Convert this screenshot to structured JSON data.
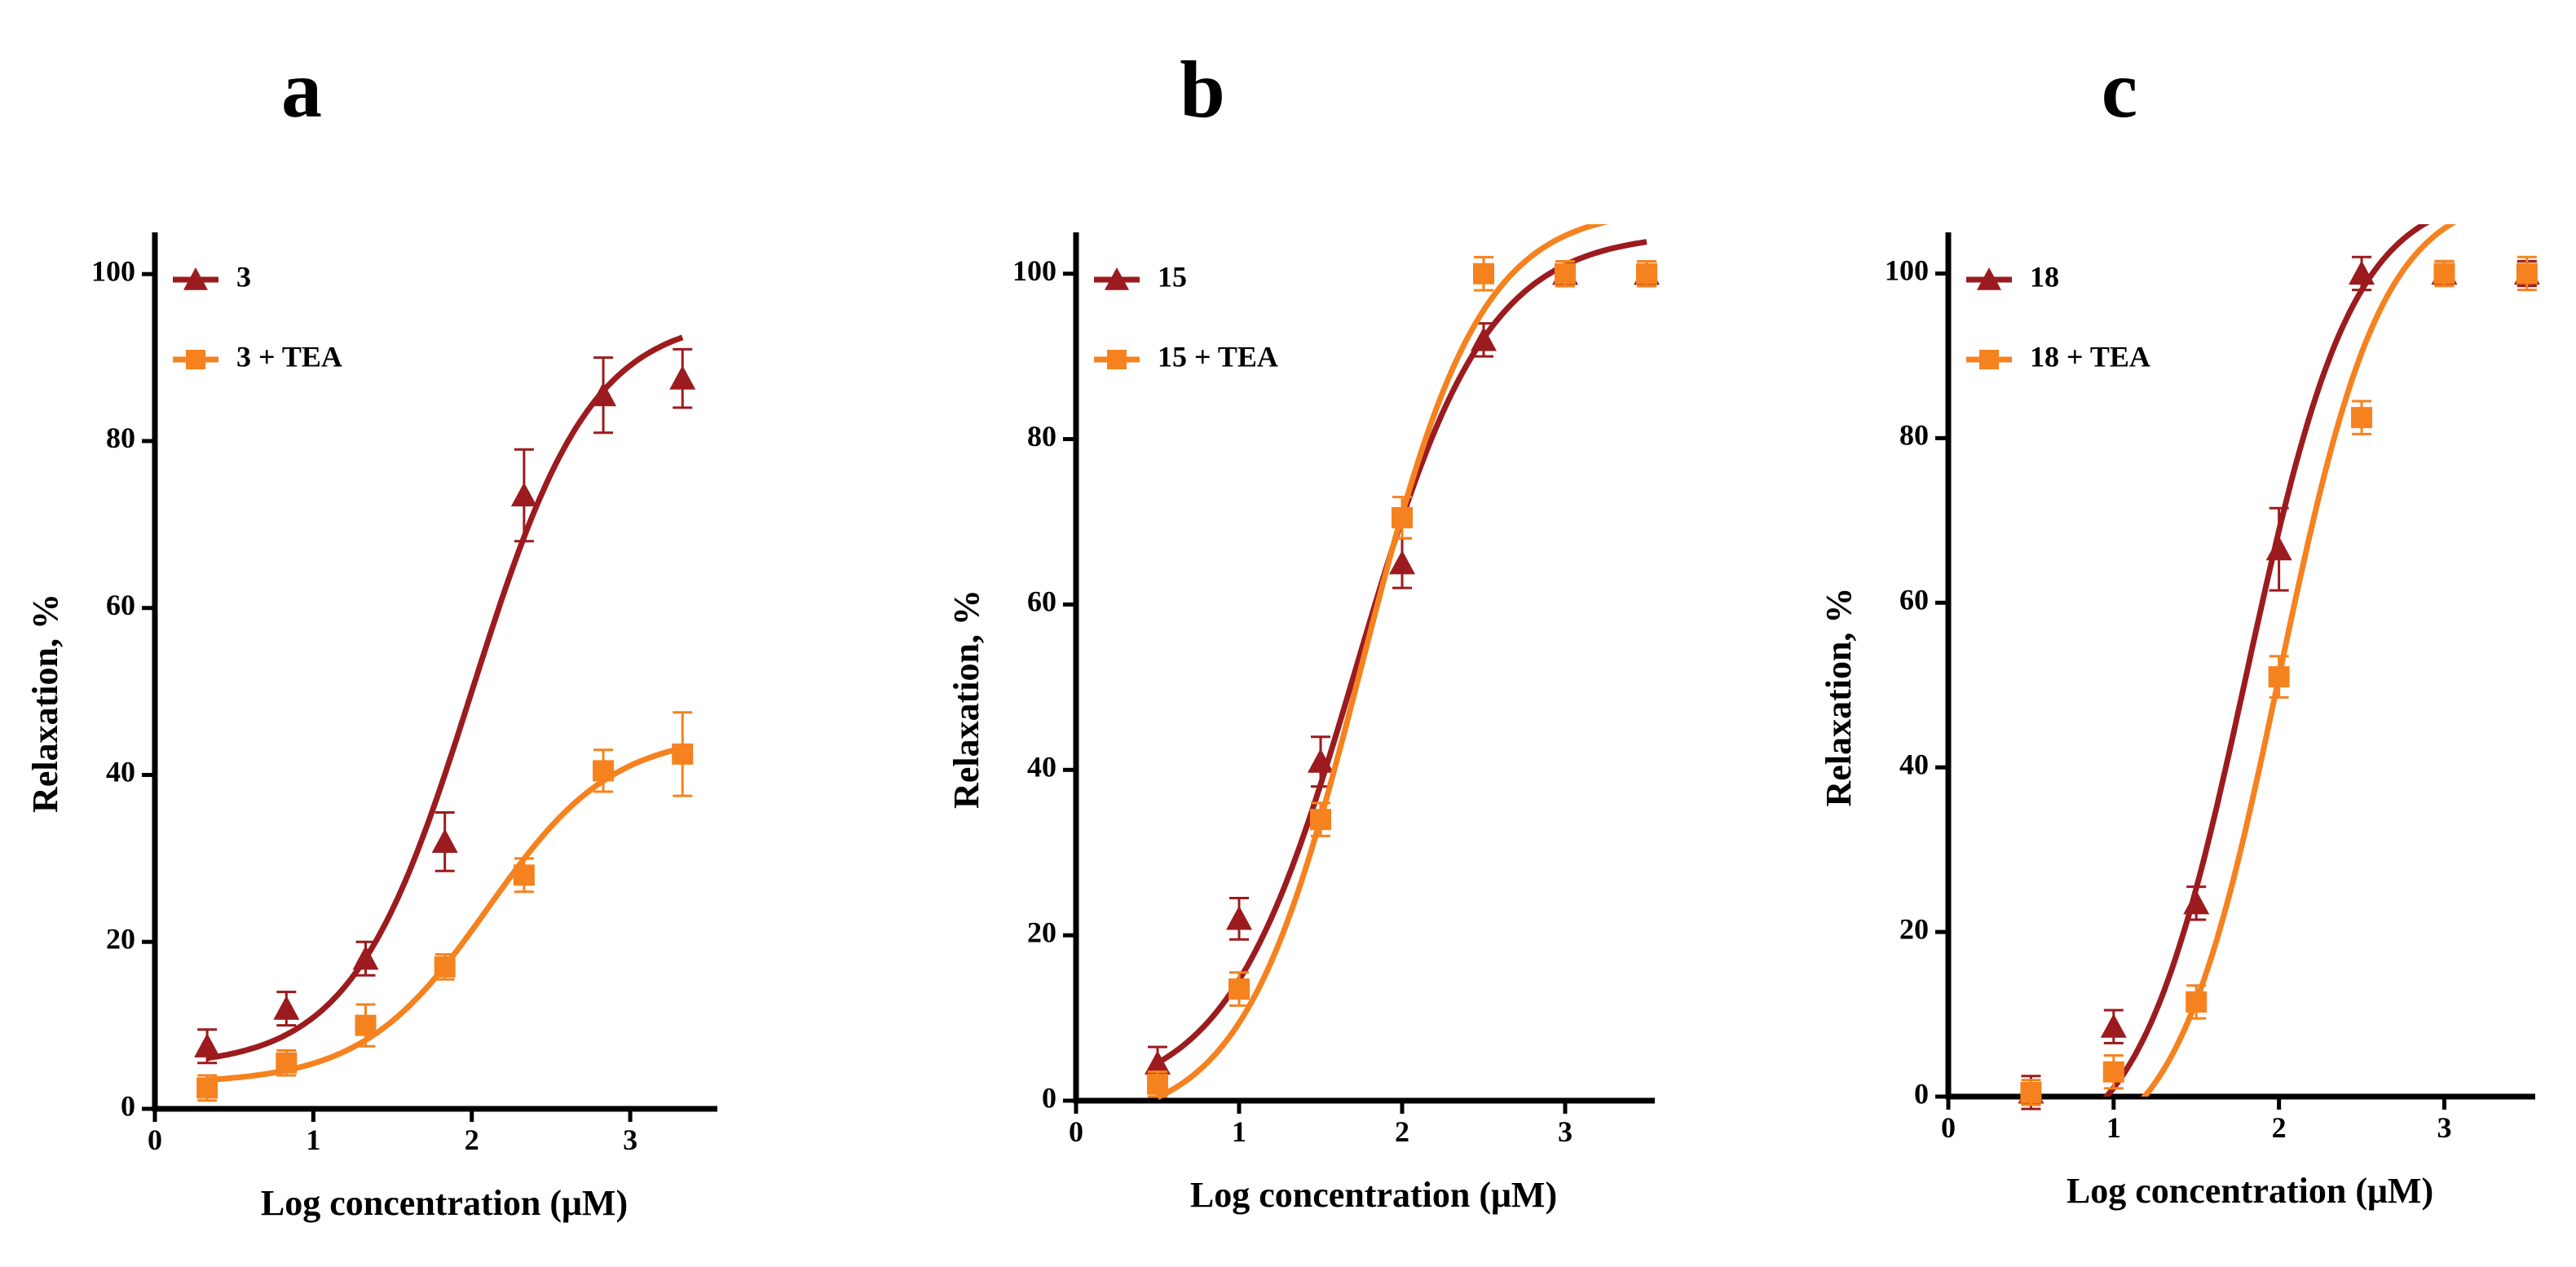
{
  "colors": {
    "series_dark": "#9b1b1e",
    "series_orange": "#f5821f",
    "axis": "#000000"
  },
  "chart_data": [
    {
      "type": "scatter",
      "panel_label": "a",
      "title": "",
      "xlabel": "Log concentration (μM)",
      "ylabel": "Relaxation, %",
      "xlim": [
        0,
        3.55
      ],
      "ylim": [
        0,
        105
      ],
      "x_ticks": [
        0,
        1,
        2,
        3
      ],
      "y_ticks": [
        0,
        20,
        40,
        60,
        80,
        100
      ],
      "grid": false,
      "legend_position": "top-left",
      "series": [
        {
          "name": "3",
          "marker": "triangle",
          "color": "#9b1b1e",
          "x": [
            0.33,
            0.83,
            1.33,
            1.83,
            2.33,
            2.83,
            3.33
          ],
          "y": [
            7.5,
            12,
            18,
            32,
            73.5,
            85.5,
            87.5
          ],
          "error": [
            2,
            2,
            2,
            3.5,
            5.5,
            4.5,
            3.5
          ],
          "fit": {
            "bottom": 5,
            "top": 95,
            "logEC50": 2.0,
            "hill": 1.15
          }
        },
        {
          "name": "3 + TEA",
          "marker": "square",
          "color": "#f5821f",
          "x": [
            0.33,
            0.83,
            1.33,
            1.83,
            2.33,
            2.83,
            3.33
          ],
          "y": [
            2.5,
            5.5,
            10,
            17,
            28,
            40.5,
            42.5
          ],
          "error": [
            1.5,
            1.5,
            2.5,
            1.5,
            2,
            2.5,
            5
          ],
          "fit": {
            "bottom": 3,
            "top": 45,
            "logEC50": 2.1,
            "hill": 1.1
          }
        }
      ]
    },
    {
      "type": "scatter",
      "panel_label": "b",
      "title": "",
      "xlabel": "Log concentration (μM)",
      "ylabel": "Relaxation, %",
      "xlim": [
        0,
        3.55
      ],
      "ylim": [
        0,
        105
      ],
      "x_ticks": [
        0,
        1,
        2,
        3
      ],
      "y_ticks": [
        0,
        20,
        40,
        60,
        80,
        100
      ],
      "grid": false,
      "legend_position": "top-left",
      "series": [
        {
          "name": "15",
          "marker": "triangle",
          "color": "#9b1b1e",
          "x": [
            0.5,
            1.0,
            1.5,
            2.0,
            2.5,
            3.0,
            3.5
          ],
          "y": [
            4.5,
            22,
            41,
            65,
            92,
            100,
            100
          ],
          "error": [
            2,
            2.5,
            3,
            3,
            2,
            1.5,
            1.5
          ],
          "fit": {
            "bottom": 0,
            "top": 105,
            "logEC50": 1.72,
            "hill": 1.1
          }
        },
        {
          "name": "15 + TEA",
          "marker": "square",
          "color": "#f5821f",
          "x": [
            0.5,
            1.0,
            1.5,
            2.0,
            2.5,
            3.0,
            3.5
          ],
          "y": [
            2,
            13.5,
            34,
            70.5,
            100,
            100,
            100
          ],
          "error": [
            1.5,
            2,
            2,
            2.5,
            2,
            1.5,
            1.5
          ],
          "fit": {
            "bottom": -3,
            "top": 108,
            "logEC50": 1.75,
            "hill": 1.2
          }
        }
      ]
    },
    {
      "type": "scatter",
      "panel_label": "c",
      "title": "",
      "xlabel": "Log concentration (μM)",
      "ylabel": "Relaxation, %",
      "xlim": [
        0,
        3.55
      ],
      "ylim": [
        0,
        105
      ],
      "x_ticks": [
        0,
        1,
        2,
        3
      ],
      "y_ticks": [
        0,
        20,
        40,
        60,
        80,
        100
      ],
      "grid": false,
      "legend_position": "top-left",
      "series": [
        {
          "name": "18",
          "marker": "triangle",
          "color": "#9b1b1e",
          "x": [
            0.5,
            1.0,
            1.5,
            2.0,
            2.5,
            3.0,
            3.5
          ],
          "y": [
            0.5,
            8.5,
            23.5,
            66.5,
            100,
            100,
            100
          ],
          "error": [
            2,
            2,
            2,
            5,
            2,
            1.5,
            1.5
          ],
          "fit": {
            "bottom": -8,
            "top": 110,
            "logEC50": 1.8,
            "hill": 1.35
          }
        },
        {
          "name": "18 + TEA",
          "marker": "square",
          "color": "#f5821f",
          "x": [
            0.5,
            1.0,
            1.5,
            2.0,
            2.5,
            3.0,
            3.5
          ],
          "y": [
            0.5,
            3,
            11.5,
            51,
            82.5,
            100,
            100
          ],
          "error": [
            1.5,
            2,
            2,
            2.5,
            2,
            1.5,
            2
          ],
          "fit": {
            "bottom": -8,
            "top": 110,
            "logEC50": 2.0,
            "hill": 1.4
          }
        }
      ]
    }
  ]
}
